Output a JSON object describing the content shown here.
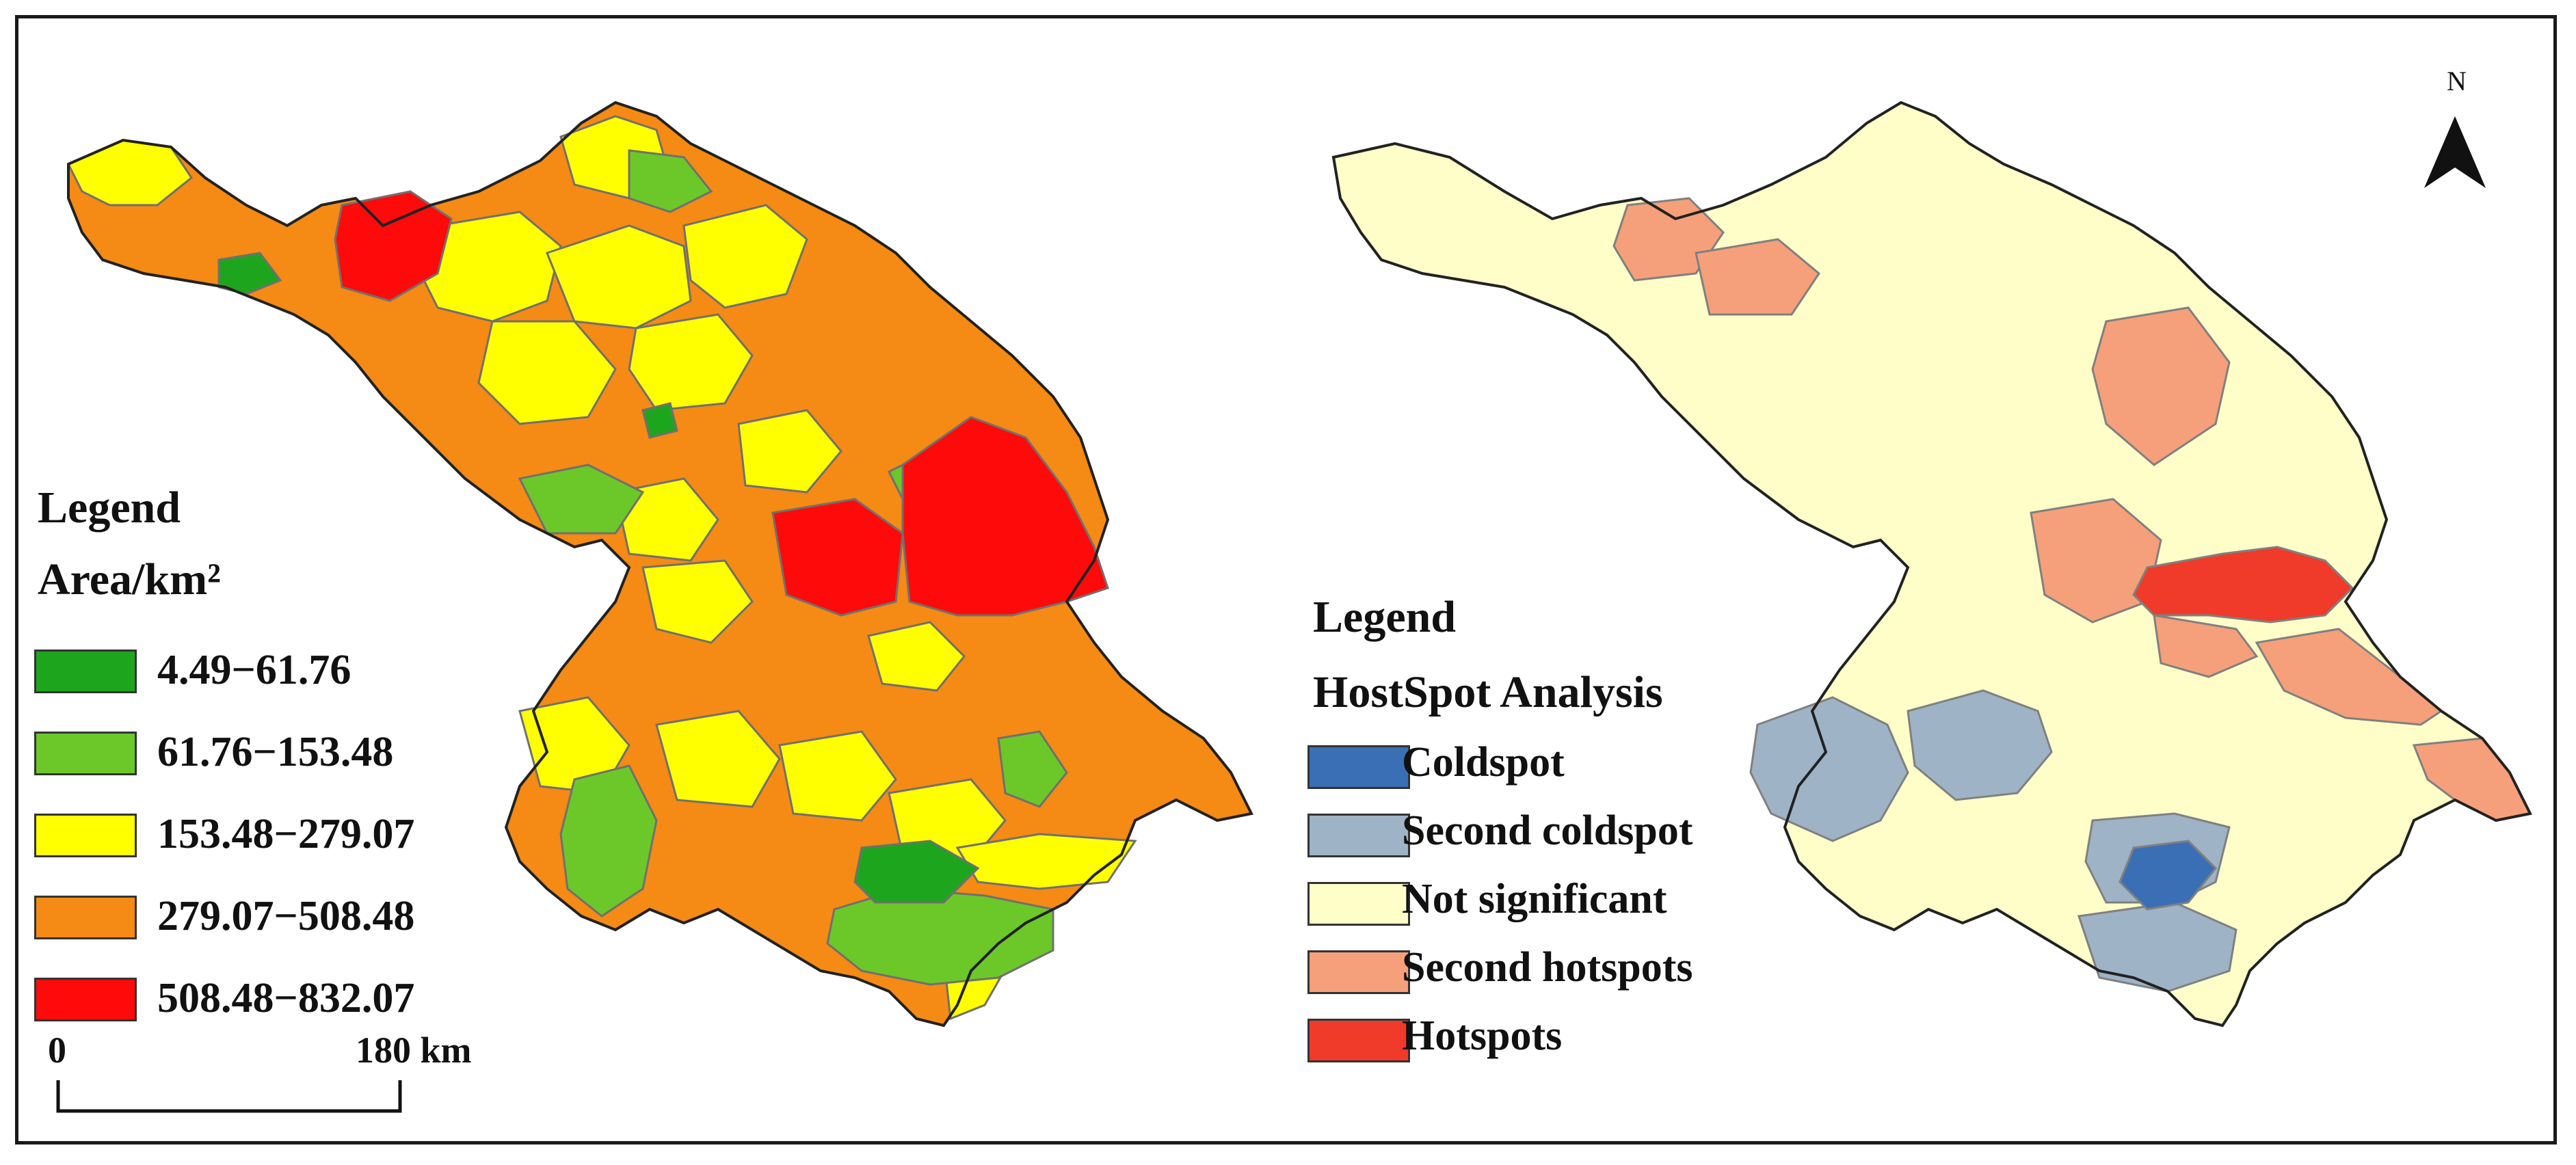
{
  "left_map": {
    "legend_title": "Legend",
    "legend_subtitle": "Area/km²",
    "classes": [
      {
        "label": "4.49−61.76",
        "color": "#1ea51e"
      },
      {
        "label": "61.76−153.48",
        "color": "#6cc828"
      },
      {
        "label": "153.48−279.07",
        "color": "#ffff00"
      },
      {
        "label": "279.07−508.48",
        "color": "#f58a14"
      },
      {
        "label": "508.48−832.07",
        "color": "#ff0a0a"
      }
    ],
    "scale_bar": {
      "start_label": "0",
      "end_label": "180 km"
    }
  },
  "right_map": {
    "legend_title": "Legend",
    "legend_subtitle": "HostSpot Analysis",
    "classes": [
      {
        "label": "Coldspot",
        "color": "#3a6fb5"
      },
      {
        "label": "Second coldspot",
        "color": "#9eb3c6"
      },
      {
        "label": "Not significant",
        "color": "#fffdc8"
      },
      {
        "label": "Second hotspots",
        "color": "#f5a07a"
      },
      {
        "label": "Hotspots",
        "color": "#f03a2a"
      }
    ],
    "north_arrow_label": "N"
  },
  "colors": {
    "boundary": "#707070",
    "outline": "#222222"
  }
}
